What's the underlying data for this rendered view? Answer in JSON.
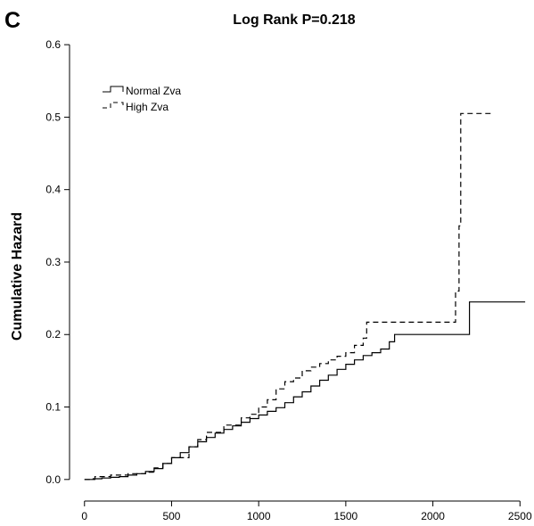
{
  "panel_label": "C",
  "chart_data": {
    "type": "line",
    "title": "Log Rank P=0.218",
    "xlabel": "",
    "ylabel": "Cumulative Hazard",
    "xlim": [
      -50,
      2560
    ],
    "ylim": [
      -0.015,
      0.61
    ],
    "xticks": [
      0,
      500,
      1000,
      1500,
      2000,
      2500
    ],
    "yticks": [
      0.0,
      0.1,
      0.2,
      0.3,
      0.4,
      0.5,
      0.6
    ],
    "xtick_labels": [
      "0",
      "500",
      "1000",
      "1500",
      "2000",
      "2500"
    ],
    "ytick_labels": [
      "0.0",
      "0.1",
      "0.2",
      "0.3",
      "0.4",
      "0.5",
      "0.6"
    ],
    "grid": false,
    "legend_position": "top-left",
    "series": [
      {
        "name": "Normal Zva",
        "line_style": "solid",
        "color": "#000000",
        "step": true,
        "x": [
          0,
          50,
          100,
          150,
          200,
          250,
          300,
          350,
          400,
          450,
          500,
          550,
          600,
          650,
          700,
          750,
          800,
          850,
          900,
          950,
          1000,
          1050,
          1100,
          1150,
          1200,
          1250,
          1300,
          1350,
          1400,
          1450,
          1500,
          1550,
          1600,
          1650,
          1700,
          1750,
          1780,
          2210,
          2530
        ],
        "y": [
          0,
          0.001,
          0.002,
          0.003,
          0.004,
          0.006,
          0.008,
          0.011,
          0.015,
          0.022,
          0.03,
          0.037,
          0.045,
          0.052,
          0.058,
          0.064,
          0.069,
          0.074,
          0.079,
          0.084,
          0.089,
          0.094,
          0.099,
          0.106,
          0.114,
          0.121,
          0.129,
          0.137,
          0.144,
          0.152,
          0.159,
          0.165,
          0.171,
          0.175,
          0.18,
          0.19,
          0.2,
          0.245,
          0.245
        ]
      },
      {
        "name": "High Zva",
        "line_style": "dashed",
        "color": "#000000",
        "step": true,
        "x": [
          0,
          60,
          150,
          250,
          350,
          400,
          450,
          500,
          600,
          650,
          700,
          800,
          900,
          950,
          1000,
          1050,
          1100,
          1150,
          1200,
          1250,
          1300,
          1350,
          1400,
          1450,
          1500,
          1550,
          1600,
          1620,
          2130,
          2150,
          2160,
          2340
        ],
        "y": [
          0,
          0.004,
          0.006,
          0.008,
          0.01,
          0.016,
          0.022,
          0.03,
          0.045,
          0.055,
          0.065,
          0.075,
          0.085,
          0.09,
          0.1,
          0.11,
          0.125,
          0.135,
          0.14,
          0.15,
          0.155,
          0.16,
          0.165,
          0.17,
          0.175,
          0.185,
          0.195,
          0.217,
          0.26,
          0.35,
          0.505,
          0.505
        ]
      }
    ]
  }
}
